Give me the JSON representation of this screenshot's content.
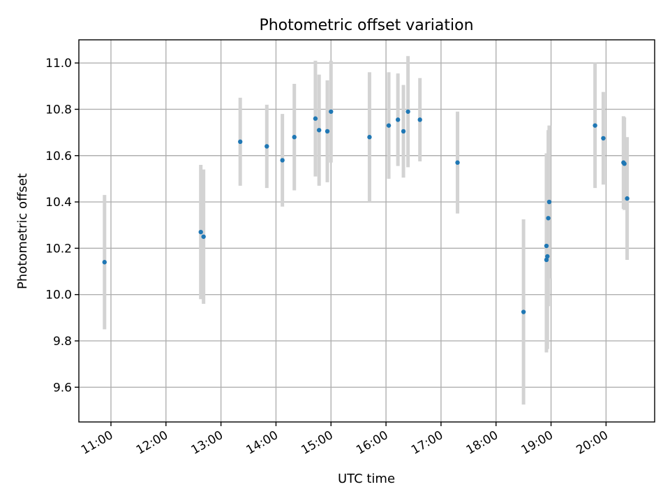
{
  "chart_data": {
    "type": "scatter",
    "title": "Photometric offset variation",
    "xlabel": "UTC time",
    "ylabel": "Photometric offset",
    "x_ticks": [
      "11:00",
      "12:00",
      "13:00",
      "14:00",
      "15:00",
      "16:00",
      "17:00",
      "18:00",
      "19:00",
      "20:00"
    ],
    "y_ticks": [
      "9.6",
      "9.8",
      "10.0",
      "10.2",
      "10.4",
      "10.6",
      "10.8",
      "11.0"
    ],
    "xlim": [
      "10:25",
      "20:53"
    ],
    "ylim": [
      9.45,
      11.1
    ],
    "grid": true,
    "point_color": "#1f77b4",
    "errorbar_color": "#d3d3d3",
    "series": [
      {
        "points": [
          {
            "x": "10:53",
            "y": 10.14,
            "err": 0.29
          },
          {
            "x": "12:38",
            "y": 10.27,
            "err": 0.29
          },
          {
            "x": "12:41",
            "y": 10.25,
            "err": 0.29
          },
          {
            "x": "13:21",
            "y": 10.66,
            "err": 0.19
          },
          {
            "x": "13:50",
            "y": 10.64,
            "err": 0.18
          },
          {
            "x": "14:07",
            "y": 10.58,
            "err": 0.2
          },
          {
            "x": "14:20",
            "y": 10.68,
            "err": 0.23
          },
          {
            "x": "14:43",
            "y": 10.76,
            "err": 0.25
          },
          {
            "x": "14:47",
            "y": 10.71,
            "err": 0.24
          },
          {
            "x": "14:56",
            "y": 10.705,
            "err": 0.22
          },
          {
            "x": "15:00",
            "y": 10.79,
            "err": 0.22
          },
          {
            "x": "15:42",
            "y": 10.68,
            "err": 0.28
          },
          {
            "x": "16:03",
            "y": 10.73,
            "err": 0.23
          },
          {
            "x": "16:13",
            "y": 10.755,
            "err": 0.2
          },
          {
            "x": "16:19",
            "y": 10.705,
            "err": 0.2
          },
          {
            "x": "16:24",
            "y": 10.79,
            "err": 0.24
          },
          {
            "x": "16:37",
            "y": 10.755,
            "err": 0.18
          },
          {
            "x": "17:18",
            "y": 10.57,
            "err": 0.22
          },
          {
            "x": "18:30",
            "y": 9.925,
            "err": 0.4
          },
          {
            "x": "18:55",
            "y": 10.21,
            "err": 0.4
          },
          {
            "x": "18:55",
            "y": 10.15,
            "err": 0.4
          },
          {
            "x": "18:56",
            "y": 10.165,
            "err": 0.4
          },
          {
            "x": "18:57",
            "y": 10.33,
            "err": 0.38
          },
          {
            "x": "18:58",
            "y": 10.4,
            "err": 0.33
          },
          {
            "x": "19:48",
            "y": 10.73,
            "err": 0.27
          },
          {
            "x": "19:57",
            "y": 10.675,
            "err": 0.2
          },
          {
            "x": "20:19",
            "y": 10.57,
            "err": 0.2
          },
          {
            "x": "20:20",
            "y": 10.565,
            "err": 0.2
          },
          {
            "x": "20:23",
            "y": 10.415,
            "err": 0.265
          }
        ]
      }
    ]
  }
}
